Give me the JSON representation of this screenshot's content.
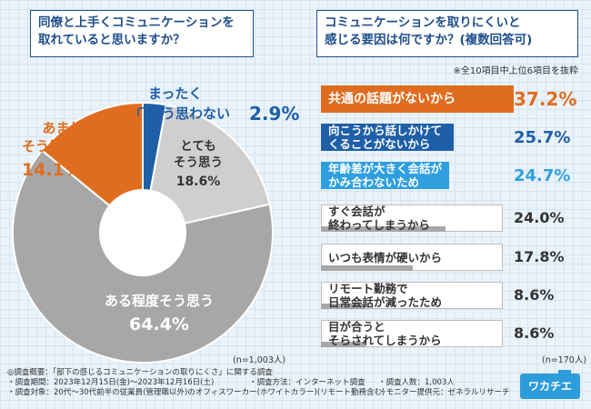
{
  "left_question": {
    "line1": "同僚と上手くコミュニケーションを",
    "line2": "取れていると思いますか？"
  },
  "right_question": {
    "line1": "コミュニケーションを取りにくいと",
    "line2": "感じる要因は何ですか？(複数回答可)"
  },
  "right_note": "※全10項目中上位6項目を抜粋",
  "left_n": "(n=1,003人)",
  "right_n": "(n=170人)",
  "colors": {
    "orange": "#e06d1f",
    "blue": "#1f5fa8",
    "light_blue": "#2f9fe0",
    "gray_dark": "#a7a7a7",
    "gray_light": "#cfcfcf",
    "text_dark": "#333333"
  },
  "chart_data": [
    {
      "type": "pie",
      "slices": [
        {
          "label_line1": "まったく",
          "label_line2": "そう思わない",
          "value": 2.9,
          "value_text": "2.9%",
          "color": "#1f5fa8"
        },
        {
          "label_line1": "とても",
          "label_line2": "そう思う",
          "value": 18.6,
          "value_text": "18.6%",
          "color": "#cfcfcf"
        },
        {
          "label_line1": "ある程度そう思う",
          "label_line2": "",
          "value": 64.4,
          "value_text": "64.4%",
          "color": "#a7a7a7"
        },
        {
          "label_line1": "あまり",
          "label_line2": "そう思わない",
          "value": 14.1,
          "value_text": "14.1%",
          "color": "#e06d1f"
        }
      ]
    },
    {
      "type": "bar",
      "orientation": "horizontal",
      "categories": [
        "共通の話題がないから",
        "向こうから話しかけてくることがないから",
        "年齢差が大きく会話がかみ合わないため",
        "すぐ会話が終わってしまうから",
        "いつも表情が硬いから",
        "リモート勤務で日常会話が減ったため",
        "目が合うとそらされてしまうから"
      ],
      "label_lines": [
        [
          "共通の話題がないから"
        ],
        [
          "向こうから話しかけて",
          "くることがないから"
        ],
        [
          "年齢差が大きく会話が",
          "かみ合わないため"
        ],
        [
          "すぐ会話が",
          "終わってしまうから"
        ],
        [
          "いつも表情が硬いから"
        ],
        [
          "リモート勤務で",
          "日常会話が減ったため"
        ],
        [
          "目が合うと",
          "そらされてしまうから"
        ]
      ],
      "values": [
        37.2,
        25.7,
        24.7,
        24.0,
        17.8,
        8.6,
        8.6
      ],
      "value_texts": [
        "37.2%",
        "25.7%",
        "24.7%",
        "24.0%",
        "17.8%",
        "8.6%",
        "8.6%"
      ],
      "colors": [
        "#e06d1f",
        "#1f5fa8",
        "#2f9fe0",
        "#a7a7a7",
        "#a7a7a7",
        "#a7a7a7",
        "#a7a7a7"
      ]
    }
  ],
  "survey": {
    "title": "◎調査概要：「部下の感じるコミュニケーションの取りにくさ」に関する調査",
    "period": "・調査期間：2023年12月15日(金)〜2023年12月16日(土)",
    "method": "・調査方法：インターネット調査",
    "count": "・調査人数：1,003人",
    "target": "・調査対象：20代〜30代前半の従業員(管理職以外)のオフィスワーカー(ホワイトカラー)(リモート勤務含む)",
    "provider": "・モニター提供元：ゼネラルリサーチ"
  },
  "logo": "ワカチエ"
}
